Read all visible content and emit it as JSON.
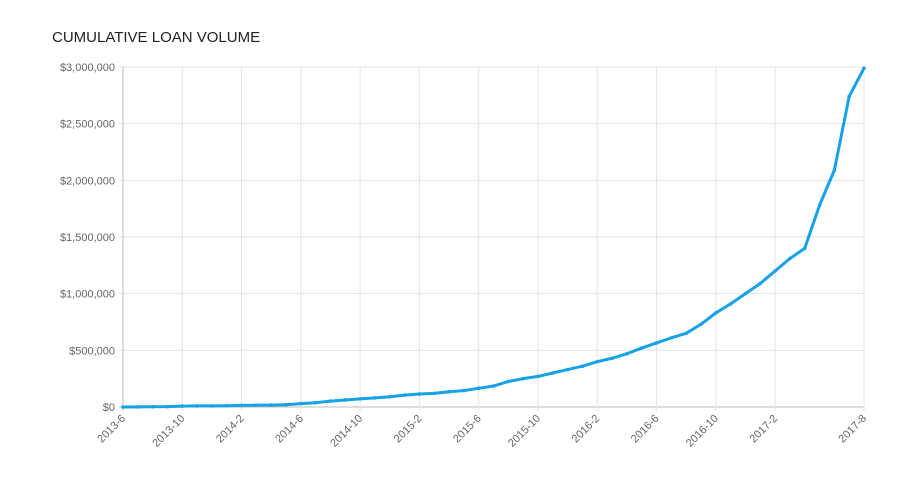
{
  "chart_data": {
    "type": "line",
    "title": "CUMULATIVE LOAN VOLUME",
    "categories": [
      "2013-6",
      null,
      null,
      null,
      "2013-10",
      null,
      null,
      null,
      "2014-2",
      null,
      null,
      null,
      "2014-6",
      null,
      null,
      null,
      "2014-10",
      null,
      null,
      null,
      "2015-2",
      null,
      null,
      null,
      "2015-6",
      null,
      null,
      null,
      "2015-10",
      null,
      null,
      null,
      "2016-2",
      null,
      null,
      null,
      "2016-6",
      null,
      null,
      null,
      "2016-10",
      null,
      null,
      null,
      "2017-2",
      null,
      null,
      null,
      null,
      null,
      "2017-8"
    ],
    "series": [
      {
        "color": "#17a2e8",
        "values": [
          0,
          1000,
          2000,
          3000,
          8000,
          10000,
          10000,
          11000,
          14000,
          16000,
          17000,
          20000,
          30000,
          38000,
          52000,
          62000,
          72000,
          80000,
          90000,
          105000,
          115000,
          120000,
          135000,
          145000,
          165000,
          185000,
          225000,
          250000,
          270000,
          300000,
          330000,
          360000,
          400000,
          430000,
          470000,
          520000,
          565000,
          610000,
          650000,
          730000,
          830000,
          910000,
          1000000,
          1090000,
          1200000,
          1310000,
          1400000,
          1780000,
          2090000,
          2740000,
          2990000
        ]
      }
    ],
    "ylim": [
      0,
      3000000
    ],
    "yticks": [
      {
        "value": 0,
        "label": "$0"
      },
      {
        "value": 500000,
        "label": "$500,000"
      },
      {
        "value": 1000000,
        "label": "$1,000,000"
      },
      {
        "value": 1500000,
        "label": "$1,500,000"
      },
      {
        "value": 2000000,
        "label": "$2,000,000"
      },
      {
        "value": 2500000,
        "label": "$2,500,000"
      },
      {
        "value": 3000000,
        "label": "$3,000,000"
      }
    ],
    "grid": true
  }
}
